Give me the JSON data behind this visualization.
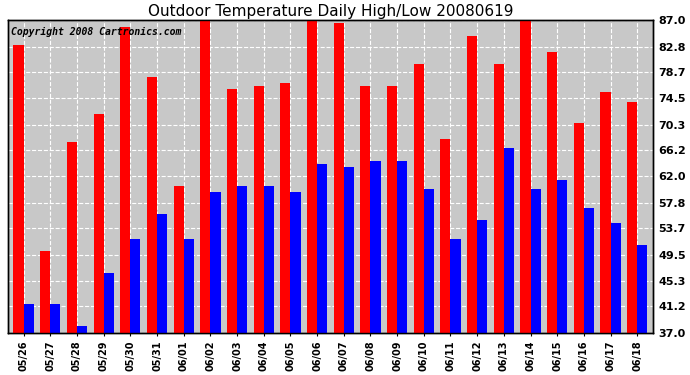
{
  "title": "Outdoor Temperature Daily High/Low 20080619",
  "copyright": "Copyright 2008 Cartronics.com",
  "dates": [
    "05/26",
    "05/27",
    "05/28",
    "05/29",
    "05/30",
    "05/31",
    "06/01",
    "06/02",
    "06/03",
    "06/04",
    "06/05",
    "06/06",
    "06/07",
    "06/08",
    "06/09",
    "06/10",
    "06/11",
    "06/12",
    "06/13",
    "06/14",
    "06/15",
    "06/16",
    "06/17",
    "06/18"
  ],
  "highs": [
    83.0,
    50.0,
    67.5,
    72.0,
    86.0,
    78.0,
    60.5,
    87.5,
    76.0,
    76.5,
    77.0,
    87.5,
    86.5,
    76.5,
    76.5,
    80.0,
    68.0,
    84.5,
    80.0,
    87.5,
    82.0,
    70.5,
    75.5,
    74.0
  ],
  "lows": [
    41.5,
    41.5,
    38.0,
    46.5,
    52.0,
    56.0,
    52.0,
    59.5,
    60.5,
    60.5,
    59.5,
    64.0,
    63.5,
    64.5,
    64.5,
    60.0,
    52.0,
    55.0,
    66.5,
    60.0,
    61.5,
    57.0,
    54.5,
    51.0
  ],
  "high_color": "#FF0000",
  "low_color": "#0000FF",
  "plot_bg_color": "#C8C8C8",
  "fig_bg_color": "#FFFFFF",
  "ymin": 37.0,
  "ymax": 87.0,
  "yticks": [
    37.0,
    41.2,
    45.3,
    49.5,
    53.7,
    57.8,
    62.0,
    66.2,
    70.3,
    74.5,
    78.7,
    82.8,
    87.0
  ],
  "ytick_labels": [
    "37.0",
    "41.2",
    "45.3",
    "49.5",
    "53.7",
    "57.8",
    "62.0",
    "66.2",
    "70.3",
    "74.5",
    "78.7",
    "82.8",
    "87.0"
  ],
  "title_fontsize": 11,
  "copyright_fontsize": 7,
  "bar_width": 0.38,
  "figsize": [
    6.9,
    3.75
  ],
  "dpi": 100
}
